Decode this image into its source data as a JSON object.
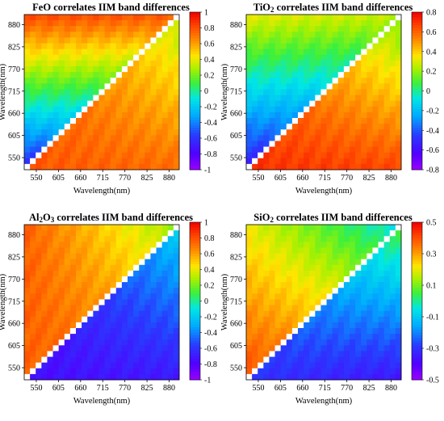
{
  "chart_data": [
    {
      "type": "heatmap",
      "title_parts": [
        "FeO",
        "",
        " correlates IIM band differences"
      ],
      "title": "FeO correlates IIM band differences",
      "xlabel": "Wavelength(nm)",
      "ylabel": "Wavelength(nm)",
      "x_ticks": [
        "550",
        "605",
        "660",
        "715",
        "770",
        "825",
        "880"
      ],
      "y_ticks": [
        "880",
        "825",
        "770",
        "715",
        "660",
        "605",
        "550"
      ],
      "xlim": [
        520,
        905
      ],
      "ylim": [
        520,
        905
      ],
      "colorbar_range": [
        -1,
        1
      ],
      "colorbar_ticks": [
        "1",
        "0.8",
        "0.6",
        "0.4",
        "0.2",
        "0",
        "-0.2",
        "-0.4",
        "-0.6",
        "-0.8",
        "-1"
      ],
      "upper_triangle": {
        "anchor": [
          -0.65,
          -0.7,
          0.8,
          0.75
        ],
        "note": ""
      },
      "lower_triangle": {
        "anchor": [
          0.78,
          0.72,
          0.78,
          0.3
        ]
      }
    },
    {
      "type": "heatmap",
      "title_parts": [
        "TiO",
        "2",
        " correlates IIM band differences"
      ],
      "title": "TiO2 correlates IIM band differences",
      "xlabel": "Wavelength(nm)",
      "ylabel": "Wavelength(nm)",
      "x_ticks": [
        "550",
        "605",
        "660",
        "715",
        "770",
        "825",
        "880"
      ],
      "y_ticks": [
        "880",
        "825",
        "770",
        "715",
        "660",
        "605",
        "550"
      ],
      "xlim": [
        520,
        905
      ],
      "ylim": [
        520,
        905
      ],
      "colorbar_range": [
        -0.8,
        0.8
      ],
      "colorbar_ticks": [
        "0.8",
        "0.6",
        "0.4",
        "0.2",
        "0",
        "-0.2",
        "-0.4",
        "-0.6",
        "-0.8"
      ],
      "upper_triangle": {
        "anchor": [
          -0.55,
          -0.58,
          0.3,
          0.25
        ]
      },
      "lower_triangle": {
        "anchor": [
          0.7,
          0.65,
          0.6,
          0.15
        ]
      }
    },
    {
      "type": "heatmap",
      "title_parts": [
        "Al",
        "2",
        "O",
        "3",
        " correlates IIM band differences"
      ],
      "title": "Al2O3 correlates IIM band differences",
      "xlabel": "Wavelength(nm)",
      "ylabel": "Wavelength(nm)",
      "x_ticks": [
        "550",
        "605",
        "660",
        "715",
        "770",
        "825",
        "880"
      ],
      "y_ticks": [
        "880",
        "825",
        "770",
        "715",
        "660",
        "605",
        "550"
      ],
      "xlim": [
        520,
        905
      ],
      "ylim": [
        520,
        905
      ],
      "colorbar_range": [
        -1,
        1
      ],
      "colorbar_ticks": [
        "1",
        "0.8",
        "0.6",
        "0.4",
        "0.2",
        "0",
        "-0.2",
        "-0.4",
        "-0.6",
        "-0.8",
        "-1"
      ],
      "upper_triangle": {
        "anchor": [
          0.75,
          0.72,
          0.75,
          0.25
        ]
      },
      "lower_triangle": {
        "anchor": [
          -0.75,
          -0.7,
          -0.7,
          -0.2
        ]
      }
    },
    {
      "type": "heatmap",
      "title_parts": [
        "SiO",
        "2",
        " correlates IIM band differences"
      ],
      "title": "SiO2 correlates IIM band differences",
      "xlabel": "Wavelength(nm)",
      "ylabel": "Wavelength(nm)",
      "x_ticks": [
        "550",
        "605",
        "660",
        "715",
        "770",
        "825",
        "880"
      ],
      "y_ticks": [
        "880",
        "825",
        "770",
        "715",
        "660",
        "605",
        "550"
      ],
      "xlim": [
        520,
        905
      ],
      "ylim": [
        520,
        905
      ],
      "colorbar_range": [
        -0.5,
        0.5
      ],
      "colorbar_ticks": [
        "0.5",
        "0.3",
        "0.1",
        "-0.1",
        "-0.3",
        "-0.5"
      ],
      "upper_triangle": {
        "anchor": [
          0.4,
          0.35,
          0.2,
          -0.05
        ]
      },
      "lower_triangle": {
        "anchor": [
          -0.3,
          -0.35,
          -0.15,
          0.05
        ]
      }
    }
  ]
}
